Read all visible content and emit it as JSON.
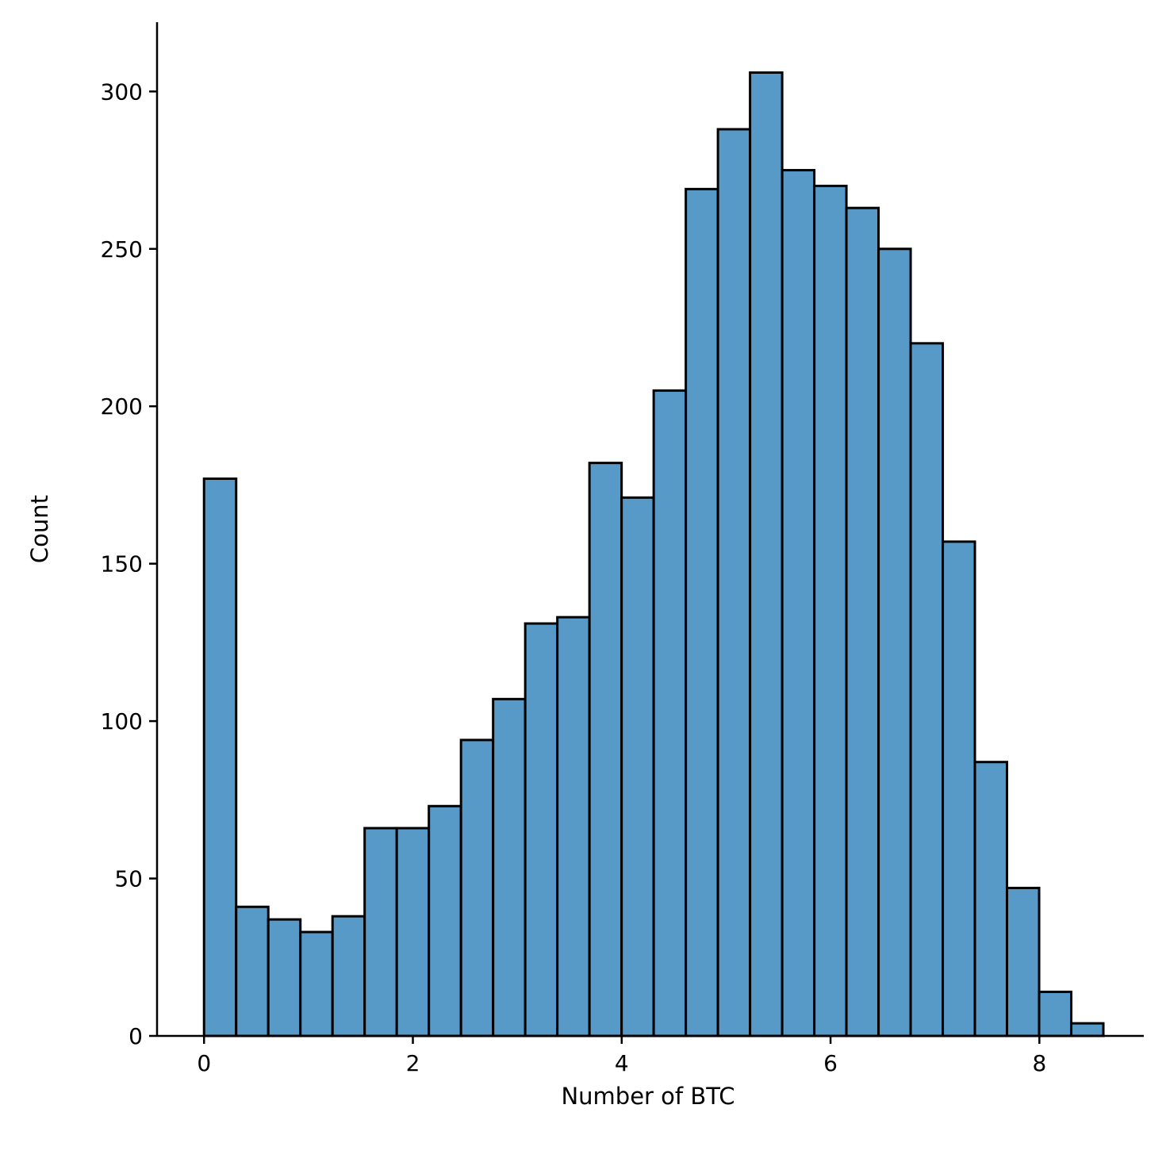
{
  "chart_data": {
    "type": "bar",
    "subtype": "histogram",
    "title": "",
    "xlabel": "Number of BTC",
    "ylabel": "Count",
    "xlim": [
      -0.45,
      9.0
    ],
    "ylim": [
      0,
      322
    ],
    "xticks": [
      0,
      2,
      4,
      6,
      8
    ],
    "yticks": [
      0,
      50,
      100,
      150,
      200,
      250,
      300
    ],
    "grid": false,
    "legend": "none",
    "bar_color": "#5799c7",
    "edge_color": "#000000",
    "bin_start": 0,
    "bin_width": 0.3076,
    "values": [
      177,
      41,
      37,
      33,
      38,
      66,
      66,
      73,
      94,
      107,
      131,
      133,
      182,
      171,
      205,
      269,
      288,
      306,
      275,
      270,
      263,
      250,
      220,
      157,
      87,
      47,
      14,
      4
    ]
  }
}
